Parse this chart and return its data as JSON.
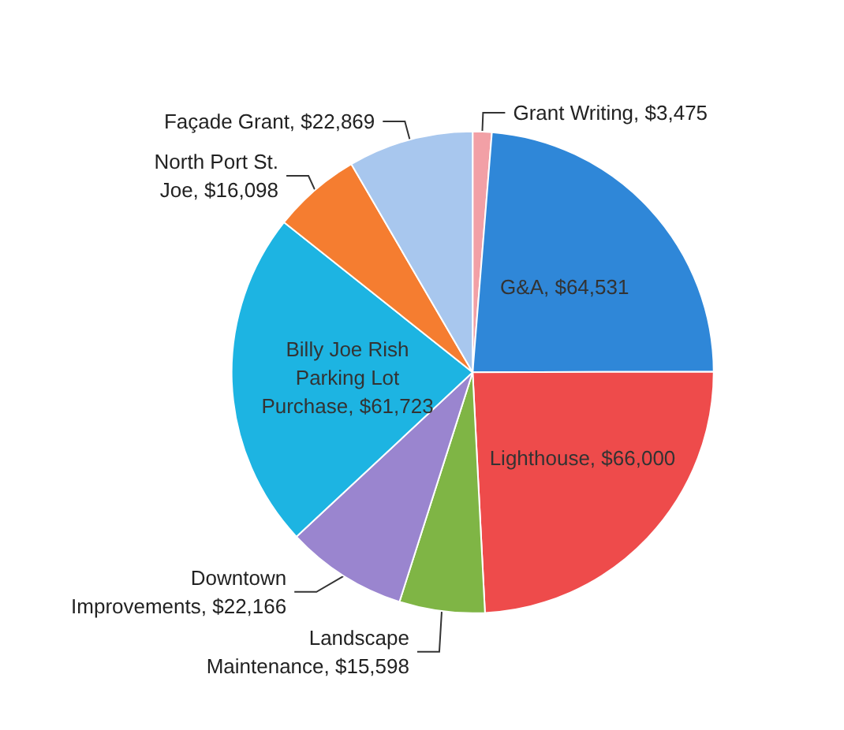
{
  "chart_data": {
    "type": "pie",
    "categories": [
      "Grant Writing",
      "G&A",
      "Lighthouse",
      "Landscape Maintenance",
      "Downtown Improvements",
      "Billy Joe Rish Parking Lot Purchase",
      "North Port St. Joe",
      "Façade Grant"
    ],
    "values": [
      3475,
      64531,
      66000,
      15598,
      22166,
      61723,
      16098,
      22869
    ],
    "value_labels": [
      "$3,475",
      "$64,531",
      "$66,000",
      "$15,598",
      "$22,166",
      "$61,723",
      "$16,098",
      "$22,869"
    ],
    "colors": [
      "#f2a0a6",
      "#2f87d8",
      "#ee4b4b",
      "#7fb545",
      "#9a85cf",
      "#1db4e2",
      "#f57d30",
      "#a8c7ee"
    ]
  }
}
